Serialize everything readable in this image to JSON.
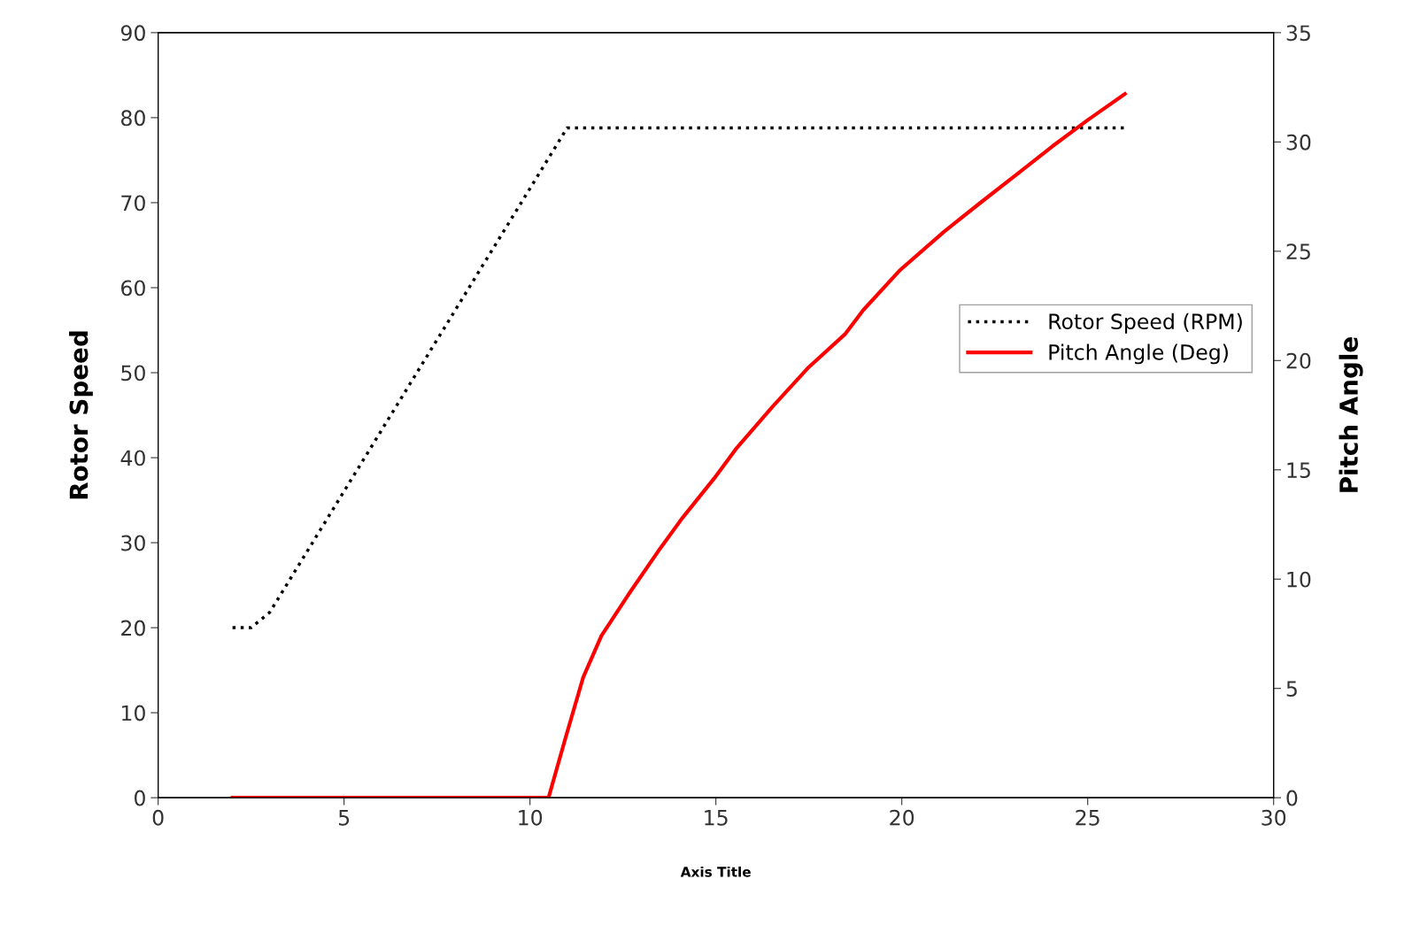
{
  "chart_data": {
    "type": "line",
    "xlabel": "Axis Title",
    "ylabel": "Rotor Speed",
    "y2label": "Pitch Angle",
    "xlim": [
      0,
      30
    ],
    "xticks": [
      0,
      5,
      10,
      15,
      20,
      25,
      30
    ],
    "ylim": [
      0,
      90
    ],
    "yticks": [
      0,
      10,
      20,
      30,
      40,
      50,
      60,
      70,
      80,
      90
    ],
    "y2lim": [
      0,
      35
    ],
    "y2ticks": [
      0,
      5,
      10,
      15,
      20,
      25,
      30,
      35
    ],
    "grid": false,
    "legend": "right",
    "series": [
      {
        "name": "Rotor Speed (RPM)",
        "color": "#000000",
        "line_style": "dotted",
        "x": [
          2,
          2.5,
          3,
          11,
          26
        ],
        "values": [
          20,
          20,
          21.8,
          78.8,
          78.8
        ]
      },
      {
        "name": "Pitch Angle (Deg)",
        "color": "#ff0000",
        "line_style": "solid",
        "axis": "y2",
        "x": [
          2,
          10.5,
          10.95,
          11.43,
          11.92,
          12.65,
          13.5,
          14.1,
          14.95,
          15.56,
          16.53,
          17.5,
          18.47,
          18.96,
          19.93,
          21.14,
          22.1,
          23.08,
          24.05,
          25.0,
          26.0
        ],
        "values": [
          0,
          0,
          2.7,
          5.5,
          7.4,
          9.3,
          11.4,
          12.8,
          14.6,
          16.0,
          17.9,
          19.7,
          21.2,
          22.3,
          24.1,
          25.9,
          27.2,
          28.5,
          29.8,
          31.0,
          32.2
        ]
      }
    ]
  }
}
